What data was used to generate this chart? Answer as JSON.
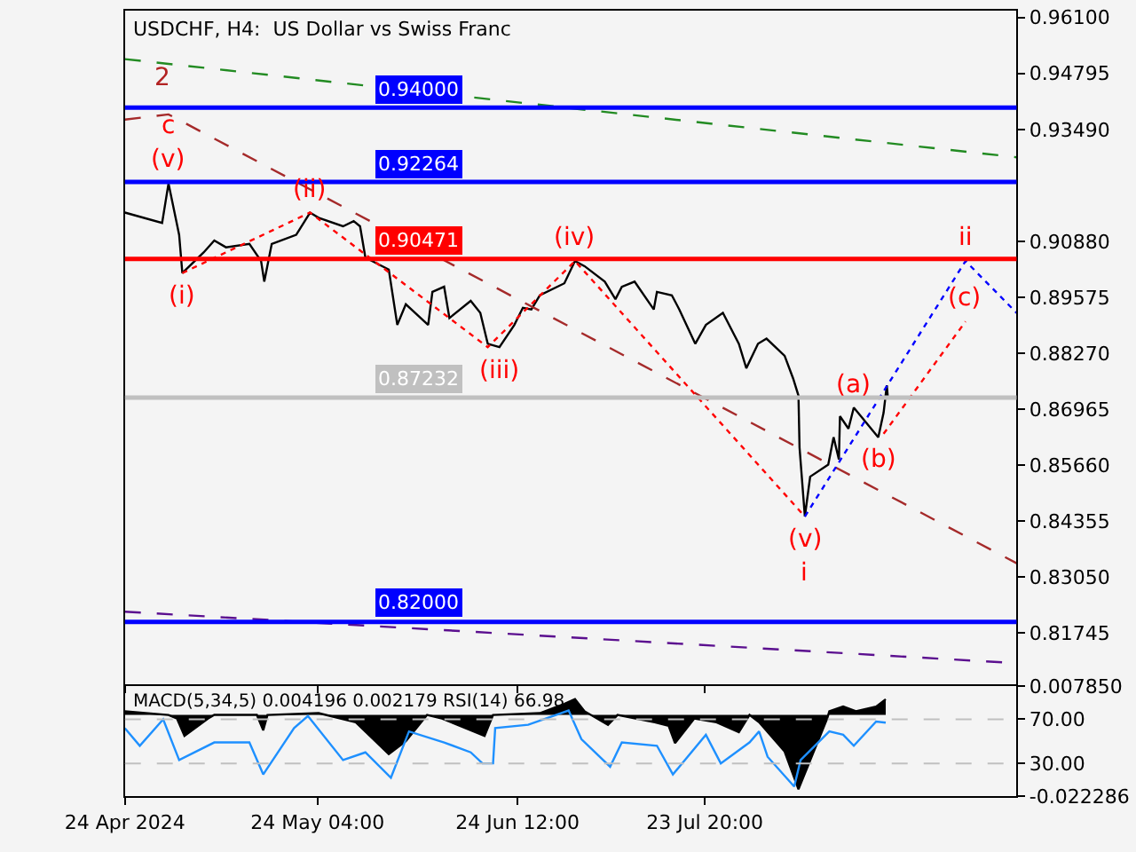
{
  "chart_data": [
    {
      "type": "line",
      "title": "USDCHF, H4:  US Dollar vs Swiss Franc",
      "tick_labels": "y",
      "xlim": [
        "2024-04-24T00:00",
        "2024-09-10T16:00"
      ],
      "xticks": [
        {
          "value": "2024-04-24T00:00",
          "label": null
        },
        {
          "value": "2024-05-24T04:00",
          "label": null
        },
        {
          "value": "2024-06-24T12:00",
          "label": null
        },
        {
          "value": "2024-07-23T20:00",
          "label": null
        }
      ],
      "ylim": [
        0.8055,
        0.9626
      ],
      "yticks": [
        {
          "value": 0.961,
          "label": "0.96100"
        },
        {
          "value": 0.94795,
          "label": "0.94795"
        },
        {
          "value": 0.9349,
          "label": "0.93490"
        },
        {
          "value": 0.9088,
          "label": "0.90880"
        },
        {
          "value": 0.89575,
          "label": "0.89575"
        },
        {
          "value": 0.8827,
          "label": "0.88270"
        },
        {
          "value": 0.86965,
          "label": "0.86965"
        },
        {
          "value": 0.8566,
          "label": "0.85660"
        },
        {
          "value": 0.84355,
          "label": "0.84355"
        },
        {
          "value": 0.8305,
          "label": "0.83050"
        },
        {
          "value": 0.81745,
          "label": "0.81745"
        }
      ],
      "series": [
        {
          "color": "#000000",
          "x": [
            "2024-04-24T00:00",
            "2024-04-29T20:00",
            "2024-04-30T20:00",
            "2024-05-01T16:00",
            "2024-05-02T12:00",
            "2024-05-03T00:00",
            "2024-05-06T08:00",
            "2024-05-08T00:00",
            "2024-05-09T20:00",
            "2024-05-13T12:00",
            "2024-05-15T08:00",
            "2024-05-15T20:00",
            "2024-05-17T00:00",
            "2024-05-20T20:00",
            "2024-05-23T00:00",
            "2024-05-24T08:00",
            "2024-05-28T04:00",
            "2024-05-29T20:00",
            "2024-05-30T20:00",
            "2024-05-31T16:00",
            "2024-06-04T08:00",
            "2024-06-05T16:00",
            "2024-06-07T00:00",
            "2024-06-10T12:00",
            "2024-06-11T04:00",
            "2024-06-13T00:00",
            "2024-06-13T20:00",
            "2024-06-17T04:00",
            "2024-06-18T16:00",
            "2024-06-19T20:00",
            "2024-06-21T16:00",
            "2024-06-24T00:00",
            "2024-06-25T08:00",
            "2024-06-26T16:00",
            "2024-06-28T00:00",
            "2024-07-01T20:00",
            "2024-07-03T12:00",
            "2024-07-05T00:00",
            "2024-07-08T04:00",
            "2024-07-09T20:00",
            "2024-07-10T20:00",
            "2024-07-12T20:00",
            "2024-07-15T20:00",
            "2024-07-16T08:00",
            "2024-07-18T16:00",
            "2024-07-19T20:00",
            "2024-07-22T08:00",
            "2024-07-24T00:00",
            "2024-07-26T16:00",
            "2024-07-29T04:00",
            "2024-07-30T08:00",
            "2024-08-01T04:00",
            "2024-08-02T12:00",
            "2024-08-05T08:00",
            "2024-08-06T16:00",
            "2024-08-07T12:00",
            "2024-08-07T16:00",
            "2024-08-08T12:00",
            "2024-08-09T08:00",
            "2024-08-12T04:00",
            "2024-08-13T00:00",
            "2024-08-13T20:00",
            "2024-08-14T00:00",
            "2024-08-15T08:00",
            "2024-08-16T04:00",
            "2024-08-20T00:00",
            "2024-08-20T20:00",
            "2024-08-21T08:00",
            "2024-08-21T12:00"
          ],
          "values": [
            0.9155,
            0.9131,
            0.9223,
            0.9163,
            0.9103,
            0.9014,
            0.9062,
            0.909,
            0.9074,
            0.9082,
            0.9042,
            0.8994,
            0.9082,
            0.9103,
            0.9155,
            0.9143,
            0.9123,
            0.9135,
            0.9123,
            0.905,
            0.9022,
            0.8893,
            0.8941,
            0.8893,
            0.897,
            0.8982,
            0.8909,
            0.8949,
            0.8921,
            0.8849,
            0.8841,
            0.8893,
            0.8933,
            0.8929,
            0.8962,
            0.899,
            0.9042,
            0.903,
            0.8994,
            0.8953,
            0.8982,
            0.8994,
            0.8929,
            0.897,
            0.8962,
            0.8929,
            0.8849,
            0.8893,
            0.8921,
            0.8849,
            0.8792,
            0.8849,
            0.8861,
            0.8821,
            0.8768,
            0.8728,
            0.8607,
            0.8446,
            0.8539,
            0.8567,
            0.8631,
            0.8579,
            0.868,
            0.8651,
            0.87,
            0.8631,
            0.8688,
            0.8752,
            0.8723
          ]
        },
        {
          "color": "#228b22",
          "line_style": "dashed",
          "x": [
            "2024-04-24T00:00",
            "2024-09-10T16:00"
          ],
          "values": [
            0.9513,
            0.9284
          ]
        },
        {
          "color": "#5b0f8f",
          "line_style": "dashed",
          "x": [
            "2024-04-24T00:00",
            "2024-09-10T16:00"
          ],
          "values": [
            0.8224,
            0.8104
          ]
        },
        {
          "color": "#a52a2a",
          "line_style": "dashed",
          "x": [
            "2024-04-24T00:00",
            "2024-04-30T20:00",
            "2024-09-10T16:00"
          ],
          "values": [
            0.9372,
            0.9384,
            0.8337
          ]
        },
        {
          "color": "#ff0000",
          "line_style": "dotted",
          "x": [
            "2024-05-03T00:00",
            "2024-05-23T00:00",
            "2024-06-19T20:00",
            "2024-07-03T12:00",
            "2024-08-08T12:00"
          ],
          "values": [
            0.9014,
            0.9155,
            0.8841,
            0.9042,
            0.8446
          ]
        },
        {
          "color": "#ff0000",
          "line_style": "dotted",
          "x": [
            "2024-08-20T20:00",
            "2024-09-02T16:00"
          ],
          "values": [
            0.8639,
            0.8901
          ]
        },
        {
          "color": "#0000ff",
          "line_style": "dotted",
          "x": [
            "2024-08-08T12:00",
            "2024-09-02T16:00",
            "2024-09-10T16:00"
          ],
          "values": [
            0.8446,
            0.9042,
            0.8921
          ]
        }
      ],
      "ref_lines": [
        {
          "axis": "y",
          "value": 0.94,
          "label": "0.94000",
          "color": "#0000ff"
        },
        {
          "axis": "y",
          "value": 0.92264,
          "label": "0.92264",
          "color": "#0000ff"
        },
        {
          "axis": "y",
          "value": 0.90471,
          "label": "0.90471",
          "color": "#ff0000"
        },
        {
          "axis": "y",
          "value": 0.87232,
          "label": "0.87232",
          "color": "#c0c0c0"
        },
        {
          "axis": "y",
          "value": 0.82,
          "label": "0.82000",
          "color": "#0000ff"
        }
      ],
      "annotations": [
        {
          "text": "(v)",
          "x": "2024-04-30T20:00",
          "y": 0.9223
        },
        {
          "text": "c",
          "x": "2024-04-30T20:00",
          "y": 0.9223
        },
        "2",
        {
          "text": "(i)",
          "x": "2024-05-03T00:00",
          "y": 0.9014
        },
        {
          "text": "(ii)",
          "x": "2024-05-23T00:00",
          "y": 0.9155
        },
        {
          "text": "(iii)",
          "x": "2024-06-21T16:00",
          "y": 0.8841
        },
        {
          "text": "(iv)",
          "x": "2024-07-03T12:00",
          "y": 0.9042
        },
        {
          "text": "(a)",
          "x": "2024-08-16T04:00",
          "y": 0.87
        },
        {
          "text": "(b)",
          "x": "2024-08-20T00:00",
          "y": 0.8631
        },
        {
          "text": "(v)",
          "x": "2024-08-08T12:00",
          "y": 0.8446
        },
        {
          "text": "i",
          "x": "2024-08-08T12:00",
          "y": 0.8446
        },
        {
          "text": "ii",
          "x": "2024-09-02T16:00",
          "y": 0.9042
        },
        {
          "text": "(c)",
          "x": "2024-09-02T16:00",
          "y": 0.8901
        }
      ]
    },
    {
      "type": "area",
      "title": "MACD(5,34,5) 0.004196 0.002179 RSI(14) 66.98",
      "xlim": [
        "2024-04-24T00:00",
        "2024-09-10T16:00"
      ],
      "xticks": [
        {
          "value": "2024-04-24T00:00",
          "label": "24 Apr 2024"
        },
        {
          "value": "2024-05-24T04:00",
          "label": "24 May 04:00"
        },
        {
          "value": "2024-06-24T12:00",
          "label": "24 Jun 12:00"
        },
        {
          "value": "2024-07-23T20:00",
          "label": "23 Jul 20:00"
        }
      ],
      "ylim": [
        -0.022286,
        0.00785
      ],
      "yticks": [
        {
          "value": 0.00785,
          "label": "0.007850"
        },
        {
          "value": -0.022286,
          "label": "-0.022286"
        }
      ],
      "y2lim": [
        0,
        100
      ],
      "y2ticks": [
        {
          "value": 70,
          "label": "70.00"
        },
        {
          "value": 30,
          "label": "30.00"
        }
      ],
      "series": [
        {
          "color": "#000000",
          "x": [
            "2024-04-24T00:00",
            "2024-04-30T20:00",
            "2024-05-02T04:00",
            "2024-05-03T08:00",
            "2024-05-07T00:00",
            "2024-05-08T00:00",
            "2024-05-14T16:00",
            "2024-05-15T16:00",
            "2024-05-16T08:00",
            "2024-05-24T08:00",
            "2024-05-30T04:00",
            "2024-06-04T08:00",
            "2024-06-07T00:00",
            "2024-06-10T08:00",
            "2024-06-12T16:00",
            "2024-06-19T08:00",
            "2024-06-20T16:00",
            "2024-06-28T00:00",
            "2024-07-01T20:00",
            "2024-07-03T12:00",
            "2024-07-05T00:00",
            "2024-07-08T16:00",
            "2024-07-10T04:00",
            "2024-07-16T00:00",
            "2024-07-18T04:00",
            "2024-07-19T04:00",
            "2024-07-22T04:00",
            "2024-07-25T16:00",
            "2024-07-29T04:00",
            "2024-07-30T20:00",
            "2024-08-01T08:00",
            "2024-08-05T08:00",
            "2024-08-07T12:00",
            "2024-08-12T00:00",
            "2024-08-12T08:00",
            "2024-08-14T12:00",
            "2024-08-16T12:00",
            "2024-08-19T16:00",
            "2024-08-21T04:00"
          ],
          "values": [
            0.001,
            0,
            -0.001,
            -0.0057,
            -0.001,
            0,
            0,
            -0.0042,
            0,
            0.0005,
            -0.002,
            -0.0107,
            -0.0072,
            0,
            -0.001,
            -0.0057,
            0,
            0.0005,
            0.003,
            0.0043,
            0.001,
            -0.0027,
            0,
            -0.002,
            -0.003,
            -0.0077,
            -0.001,
            -0.002,
            -0.0047,
            0,
            -0.002,
            -0.01,
            -0.0203,
            -0.001,
            0.001,
            0.0023,
            0.001,
            0.0023,
            0.0043
          ]
        },
        {
          "type": "line",
          "color": "#1e90ff",
          "axis": "y2",
          "x": [
            "2024-04-24T00:00",
            "2024-04-26T08:00",
            "2024-04-30T00:00",
            "2024-05-02T12:00",
            "2024-05-08T00:00",
            "2024-05-13T12:00",
            "2024-05-15T16:00",
            "2024-05-20T12:00",
            "2024-05-22T16:00",
            "2024-05-28T04:00",
            "2024-05-31T16:00",
            "2024-06-04T16:00",
            "2024-06-07T12:00",
            "2024-06-13T00:00",
            "2024-06-17T04:00",
            "2024-06-19T00:00",
            "2024-06-20T16:00",
            "2024-06-21T00:00",
            "2024-06-26T04:00",
            "2024-07-02T12:00",
            "2024-07-04T12:00",
            "2024-07-09T00:00",
            "2024-07-10T20:00",
            "2024-07-16T08:00",
            "2024-07-18T20:00",
            "2024-07-24T00:00",
            "2024-07-26T08:00",
            "2024-07-30T20:00",
            "2024-08-01T08:00",
            "2024-08-02T16:00",
            "2024-08-06T20:00",
            "2024-08-07T20:00",
            "2024-08-12T08:00",
            "2024-08-14T12:00",
            "2024-08-16T04:00",
            "2024-08-19T16:00",
            "2024-08-21T04:00"
          ],
          "values": [
            62,
            46,
            70,
            33,
            49,
            49,
            20,
            62,
            73,
            33,
            40,
            17,
            59,
            49,
            40,
            30,
            30,
            62,
            65,
            78,
            52,
            27,
            49,
            46,
            20,
            56,
            30,
            49,
            59,
            36,
            9,
            33,
            59,
            56,
            46,
            68,
            67
          ]
        }
      ],
      "ref_lines": [
        {
          "axis": "y2",
          "value": 70,
          "color": "#c0c0c0",
          "line_style": "dashed"
        },
        {
          "axis": "y2",
          "value": 30,
          "color": "#c0c0c0",
          "line_style": "dashed"
        }
      ]
    }
  ]
}
